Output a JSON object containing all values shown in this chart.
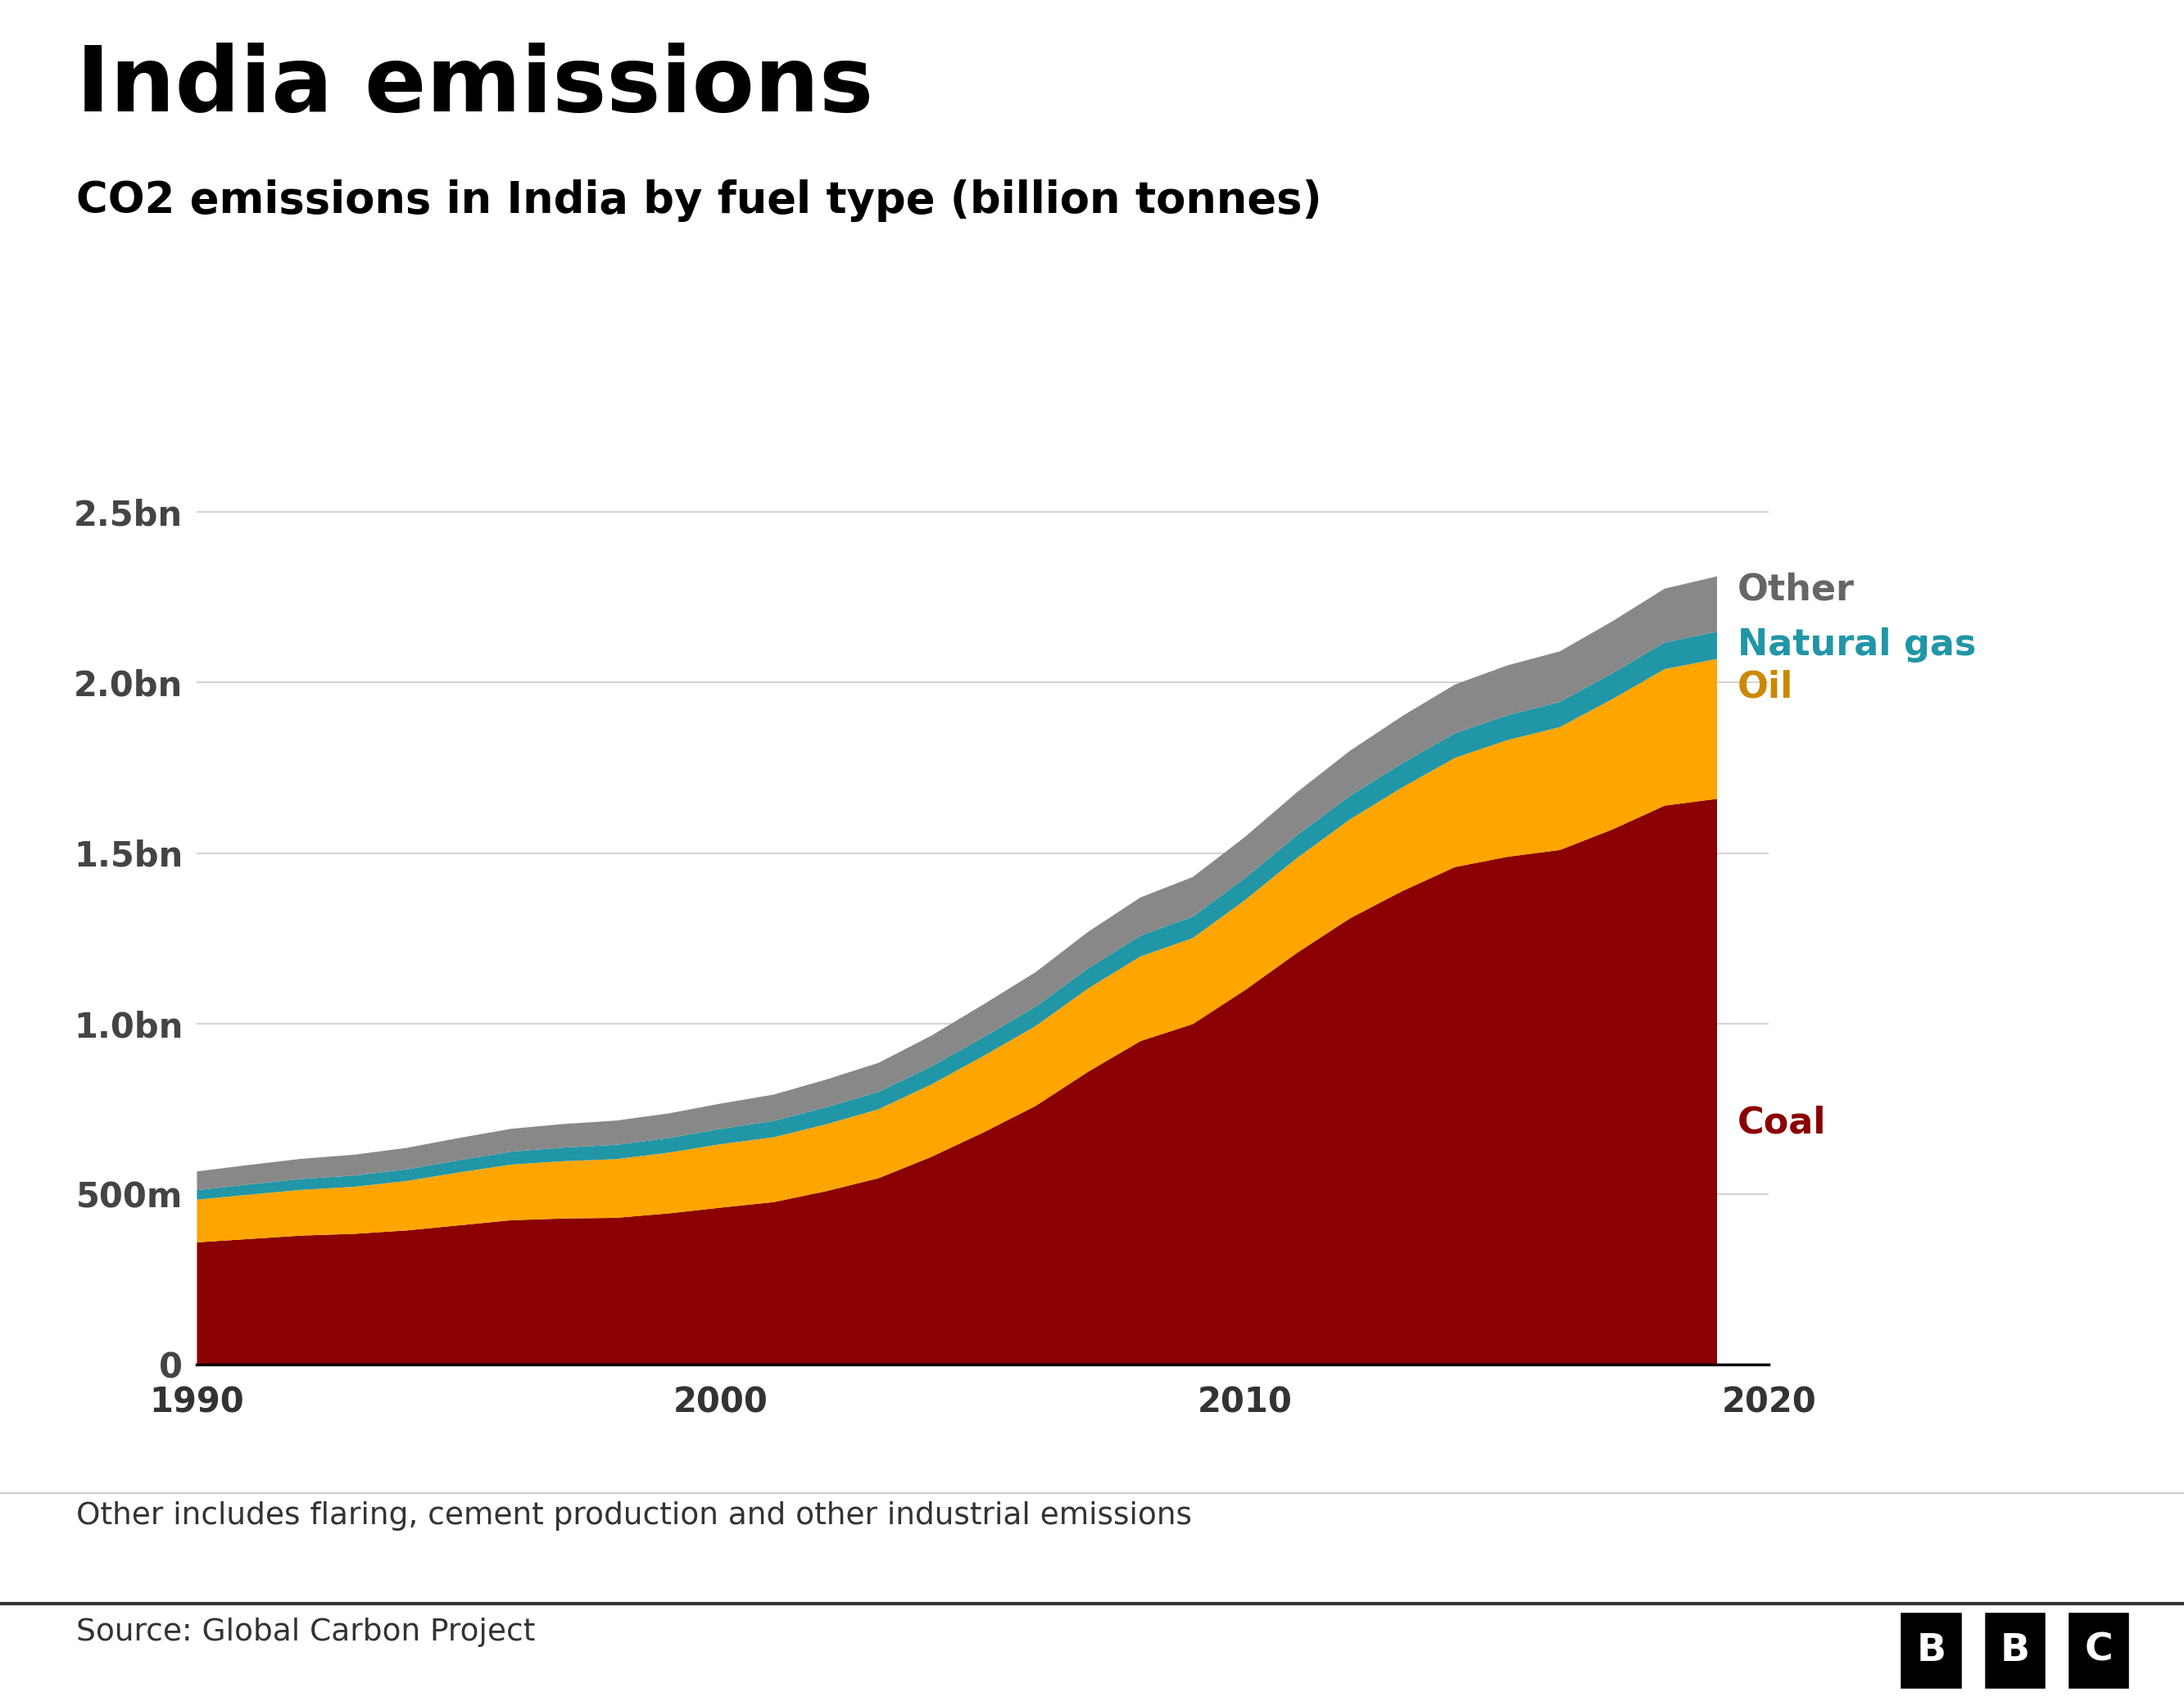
{
  "title": "India emissions",
  "subtitle": "CO2 emissions in India by fuel type (billion tonnes)",
  "footnote": "Other includes flaring, cement production and other industrial emissions",
  "source": "Source: Global Carbon Project",
  "years": [
    1990,
    1991,
    1992,
    1993,
    1994,
    1995,
    1996,
    1997,
    1998,
    1999,
    2000,
    2001,
    2002,
    2003,
    2004,
    2005,
    2006,
    2007,
    2008,
    2009,
    2010,
    2011,
    2012,
    2013,
    2014,
    2015,
    2016,
    2017,
    2018,
    2019
  ],
  "coal": [
    0.36,
    0.37,
    0.38,
    0.385,
    0.395,
    0.41,
    0.425,
    0.43,
    0.432,
    0.445,
    0.462,
    0.478,
    0.51,
    0.548,
    0.61,
    0.682,
    0.76,
    0.86,
    0.95,
    1.0,
    1.1,
    1.21,
    1.31,
    1.39,
    1.46,
    1.49,
    1.51,
    1.57,
    1.64,
    1.66
  ],
  "oil": [
    0.125,
    0.13,
    0.134,
    0.138,
    0.145,
    0.155,
    0.163,
    0.168,
    0.172,
    0.178,
    0.186,
    0.19,
    0.196,
    0.202,
    0.212,
    0.224,
    0.234,
    0.244,
    0.248,
    0.252,
    0.264,
    0.278,
    0.29,
    0.304,
    0.32,
    0.342,
    0.36,
    0.382,
    0.4,
    0.41
  ],
  "natural_gas": [
    0.028,
    0.03,
    0.032,
    0.033,
    0.034,
    0.036,
    0.038,
    0.04,
    0.042,
    0.043,
    0.045,
    0.048,
    0.05,
    0.051,
    0.053,
    0.055,
    0.057,
    0.059,
    0.061,
    0.063,
    0.065,
    0.067,
    0.069,
    0.071,
    0.072,
    0.073,
    0.074,
    0.076,
    0.078,
    0.08
  ],
  "other": [
    0.055,
    0.057,
    0.059,
    0.061,
    0.063,
    0.065,
    0.067,
    0.069,
    0.071,
    0.072,
    0.074,
    0.077,
    0.081,
    0.085,
    0.09,
    0.096,
    0.101,
    0.107,
    0.112,
    0.116,
    0.12,
    0.126,
    0.132,
    0.138,
    0.143,
    0.146,
    0.148,
    0.152,
    0.158,
    0.162
  ],
  "coal_color": "#8B0000",
  "oil_color": "#FFA500",
  "natural_gas_color": "#2196a6",
  "other_color": "#888888",
  "background_color": "#ffffff",
  "title_color": "#000000",
  "subtitle_color": "#000000",
  "coal_label_color": "#8B0000",
  "oil_label_color": "#cc8800",
  "natural_gas_label_color": "#2196a6",
  "other_label_color": "#666666",
  "ytick_labels": [
    "0",
    "500m",
    "1.0bn",
    "1.5bn",
    "2.0bn",
    "2.5bn"
  ],
  "ytick_values": [
    0,
    0.5,
    1.0,
    1.5,
    2.0,
    2.5
  ],
  "ylim": [
    0,
    2.8
  ],
  "xlim": [
    1990,
    2019
  ]
}
